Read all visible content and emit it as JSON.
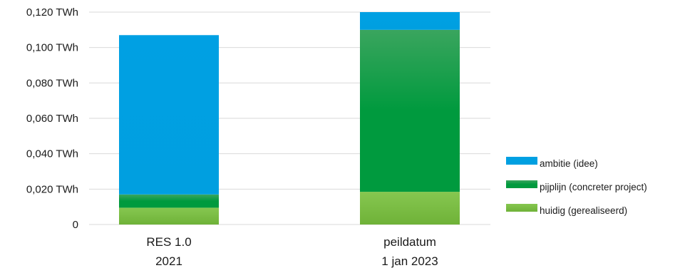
{
  "chart_data": {
    "type": "bar",
    "stacked": true,
    "categories": [
      [
        "RES 1.0",
        "2021"
      ],
      [
        "peildatum",
        "1 jan 2023"
      ]
    ],
    "series": [
      {
        "name": "huidig (gerealiseerd)",
        "color": "#7bbf44",
        "values": [
          0.0095,
          0.0185
        ]
      },
      {
        "name": "pijplijn (concreter project)",
        "color": "#1e9e4a",
        "values": [
          0.0075,
          0.0915
        ]
      },
      {
        "name": "ambitie (idee)",
        "color": "#00a0e3",
        "values": [
          0.09,
          0.01
        ]
      }
    ],
    "ylim": [
      0,
      0.12
    ],
    "yticks": [
      0,
      0.02,
      0.04,
      0.06,
      0.08,
      0.1,
      0.12
    ],
    "ytick_labels": [
      "0",
      "0,020 TWh",
      "0,040 TWh",
      "0,060 TWh",
      "0,080 TWh",
      "0,100 TWh",
      "0,120 TWh"
    ],
    "grid": true,
    "legend_position": "right",
    "legend_order": [
      "ambitie (idee)",
      "pijplijn (concreter project)",
      "huidig (gerealiseerd)"
    ],
    "title": "",
    "xlabel": "",
    "ylabel": ""
  }
}
